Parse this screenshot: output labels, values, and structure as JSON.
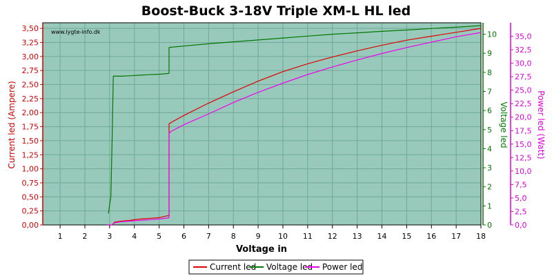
{
  "chart_data": {
    "type": "line",
    "title": "Boost-Buck 3-18V Triple XM-L HL led",
    "watermark": "www.lygte-info.dk",
    "xlabel": "Voltage in",
    "xlim": [
      0.3,
      18
    ],
    "xticks": [
      "1",
      "2",
      "3",
      "4",
      "5",
      "6",
      "7",
      "8",
      "9",
      "10",
      "11",
      "12",
      "13",
      "14",
      "15",
      "16",
      "17",
      "18"
    ],
    "y_left": {
      "label": "Current led (Ampere)",
      "ylim": [
        0,
        3.6
      ],
      "ticks": [
        "0,00",
        "0,25",
        "0,50",
        "0,75",
        "1,00",
        "1,25",
        "1,50",
        "1,75",
        "2,00",
        "2,25",
        "2,50",
        "2,75",
        "3,00",
        "3,25",
        "3,50"
      ],
      "color": "#cc0000"
    },
    "y_right1": {
      "label": "Voltage led",
      "ylim": [
        0,
        10.6
      ],
      "ticks": [
        "0",
        "1",
        "2",
        "3",
        "4",
        "5",
        "6",
        "7",
        "8",
        "9",
        "10"
      ],
      "color": "#007700"
    },
    "y_right2": {
      "label": "Power led (Watt)",
      "ylim": [
        0,
        37.5
      ],
      "ticks": [
        "0,0",
        "2,5",
        "5,0",
        "7,5",
        "10,0",
        "12,5",
        "15,0",
        "17,5",
        "20,0",
        "22,5",
        "25,0",
        "27,5",
        "30,0",
        "32,5",
        "35,0"
      ],
      "color": "#dd00dd"
    },
    "grid": true,
    "background": "#99c9bb",
    "legend_position": "bottom",
    "series": [
      {
        "name": "Current led",
        "axis": "left",
        "color": "#dd0000",
        "x": [
          2.9,
          3.1,
          3.2,
          3.5,
          3.8,
          4.1,
          4.4,
          4.7,
          5.0,
          5.2,
          5.4,
          5.4,
          5.5,
          6.0,
          7.0,
          8.0,
          9.0,
          10.0,
          11.0,
          12.0,
          13.0,
          14.0,
          15.0,
          16.0,
          17.0,
          18.0
        ],
        "y": [
          0.0,
          0.0,
          0.05,
          0.07,
          0.08,
          0.1,
          0.11,
          0.12,
          0.13,
          0.15,
          0.17,
          1.8,
          1.83,
          1.95,
          2.17,
          2.37,
          2.56,
          2.73,
          2.87,
          2.99,
          3.1,
          3.2,
          3.29,
          3.36,
          3.43,
          3.5
        ]
      },
      {
        "name": "Voltage led",
        "axis": "right1",
        "color": "#007700",
        "x": [
          2.95,
          3.05,
          3.1,
          3.15,
          3.2,
          3.3,
          3.5,
          3.8,
          4.2,
          4.6,
          5.0,
          5.4,
          5.4,
          5.5,
          6.0,
          7.0,
          8.0,
          9.0,
          10.0,
          11.0,
          12.0,
          13.0,
          14.0,
          15.0,
          16.0,
          17.0,
          18.0
        ],
        "y": [
          0.6,
          1.5,
          4.5,
          7.8,
          7.8,
          7.8,
          7.8,
          7.82,
          7.85,
          7.88,
          7.9,
          7.95,
          9.3,
          9.32,
          9.38,
          9.5,
          9.6,
          9.7,
          9.8,
          9.9,
          10.0,
          10.07,
          10.15,
          10.22,
          10.3,
          10.37,
          10.45
        ]
      },
      {
        "name": "Power led",
        "axis": "right2",
        "color": "#ee00ee",
        "x": [
          2.9,
          3.1,
          3.2,
          3.5,
          3.8,
          4.1,
          4.4,
          4.7,
          5.0,
          5.2,
          5.4,
          5.4,
          5.5,
          6.0,
          7.0,
          8.0,
          9.0,
          10.0,
          11.0,
          12.0,
          13.0,
          14.0,
          15.0,
          16.0,
          17.0,
          18.0
        ],
        "y": [
          0.0,
          0.0,
          0.4,
          0.6,
          0.7,
          0.8,
          0.9,
          1.0,
          1.1,
          1.2,
          1.35,
          17.0,
          17.4,
          18.6,
          20.6,
          22.7,
          24.6,
          26.3,
          27.9,
          29.3,
          30.6,
          31.8,
          32.9,
          33.9,
          34.9,
          35.7
        ]
      }
    ]
  }
}
